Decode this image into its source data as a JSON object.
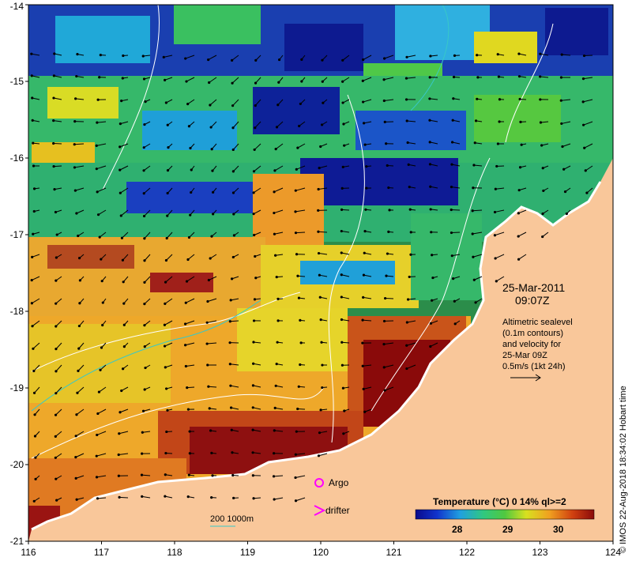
{
  "map": {
    "lon_ticks": [
      "116",
      "117",
      "118",
      "119",
      "120",
      "121",
      "122",
      "123",
      "124"
    ],
    "lat_ticks": [
      "-14",
      "-15",
      "-16",
      "-17",
      "-18",
      "-19",
      "-20",
      "-21"
    ],
    "date": "25-Mar-2011",
    "time": "09:07Z",
    "description_lines": [
      "Altimetric sealevel",
      "(0.1m contours)",
      "and velocity for",
      "25-Mar 09Z",
      "0.5m/s (1kt 24h)"
    ],
    "legend": {
      "argo_label": "Argo",
      "drifter_label": "drifter",
      "isobath_label": "200  1000m"
    },
    "colorbar": {
      "title": "Temperature (°C) 0 14% ql>=2",
      "ticks": [
        "28",
        "29",
        "30"
      ]
    },
    "credit": "© IMOS 22-Aug-2018 18:34:02 Hobart time",
    "colors": {
      "land": "#f9c79a",
      "contour": "#ffffff",
      "isobath": "#38c8c8",
      "argo": "#ff00ff",
      "drifter": "#ff00ff"
    }
  }
}
